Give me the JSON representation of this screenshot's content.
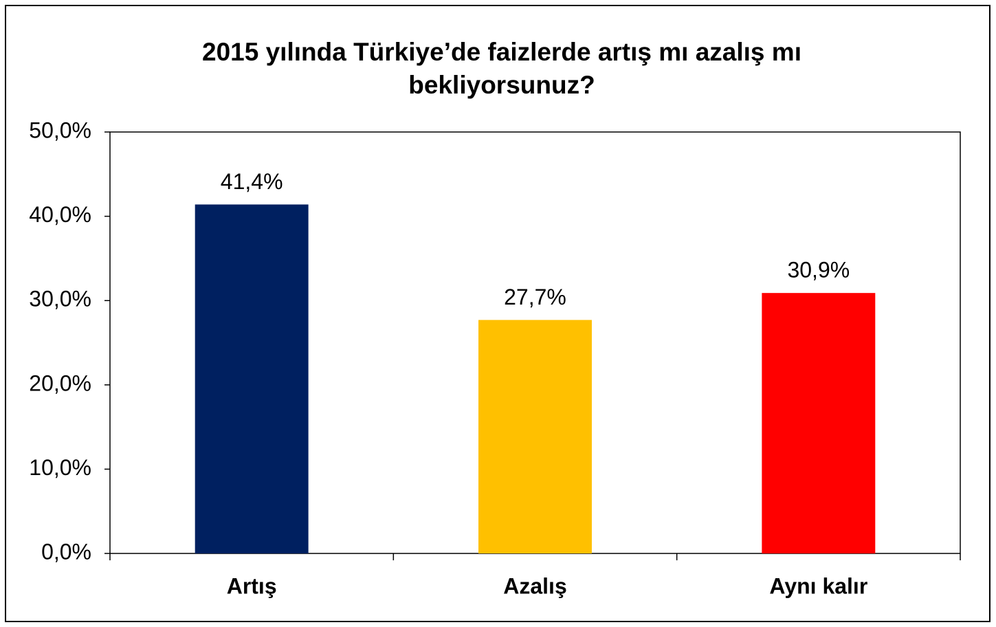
{
  "chart_data": {
    "type": "bar",
    "title": "2015 yılında Türkiye’de faizlerde artış mı azalış mı bekliyorsunuz?",
    "categories": [
      "Artış",
      "Azalış",
      "Aynı kalır"
    ],
    "values": [
      41.4,
      27.7,
      30.9
    ],
    "value_labels": [
      "41,4%",
      "27,7%",
      "30,9%"
    ],
    "colors": [
      "#002060",
      "#ffc000",
      "#ff0000"
    ],
    "ylim": [
      0,
      50
    ],
    "yticks": [
      {
        "value": 0,
        "label": "0,0%"
      },
      {
        "value": 10,
        "label": "10,0%"
      },
      {
        "value": 20,
        "label": "20,0%"
      },
      {
        "value": 30,
        "label": "30,0%"
      },
      {
        "value": 40,
        "label": "40,0%"
      },
      {
        "value": 50,
        "label": "50,0%"
      }
    ],
    "grid": false
  }
}
